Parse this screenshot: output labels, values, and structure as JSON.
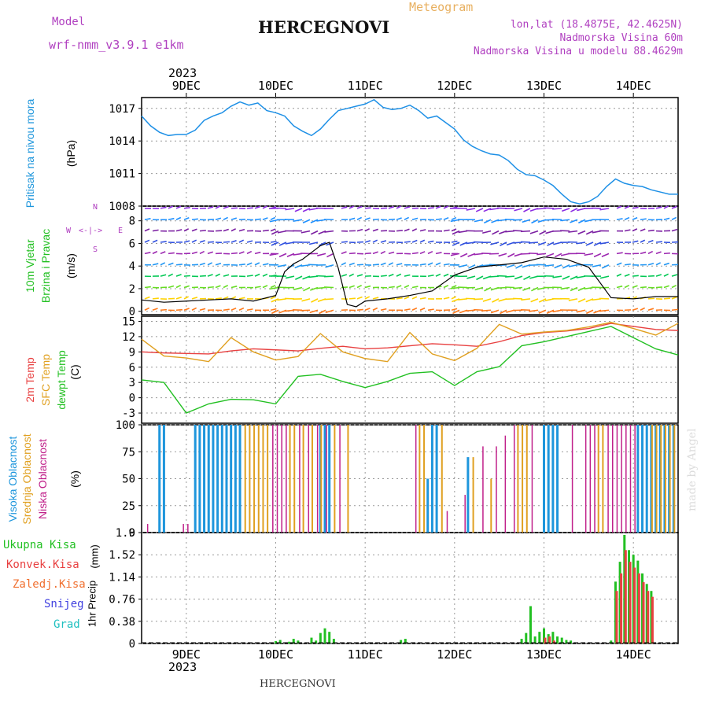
{
  "header": {
    "model_label": "Model",
    "model_name": "wrf-nmm_v3.9.1 e1km",
    "location_title": "HERCEGNOVI",
    "meteogram_label": "Meteogram",
    "lonlat": "lon,lat (18.4875E, 42.4625N)",
    "elevation": "Nadmorska Visina 60m",
    "model_elevation": "Nadmorska Visina u modelu 88.4629m",
    "footer_title": "HERCEGNOVI",
    "credit": "made by Angel"
  },
  "colors": {
    "pressure": "#1e90e6",
    "temp2m": "#e84040",
    "sfc": "#e0a020",
    "dewpt": "#22c022",
    "high_cloud": "#1e96dc",
    "mid_cloud": "#e0a020",
    "low_cloud": "#c0208a",
    "precip_total": "#22c022",
    "precip_conv": "#e84040",
    "title_purple": "#b040c0",
    "meteogram": "#e8b060"
  },
  "time_axis": {
    "year": "2023",
    "days": [
      "9DEC",
      "10DEC",
      "11DEC",
      "12DEC",
      "13DEC",
      "14DEC"
    ],
    "start_day_offset": -0.5,
    "end_day_offset": 5.5
  },
  "wind_compass": {
    "n": "N",
    "s": "S",
    "e": "E",
    "w": "W"
  },
  "panels": {
    "pressure": {
      "labels": [
        "Pritisak na nivou mora"
      ],
      "unit": "(hPa)"
    },
    "wind": {
      "labels": [
        "10m Vjetar",
        "Brzina i Pravac"
      ],
      "unit": "(m/s)"
    },
    "temp": {
      "labels": [
        "2m Temp",
        "SFC Temp",
        "dewpt Temp"
      ],
      "unit": "(C)"
    },
    "cloud": {
      "labels": [
        "Visoka Oblacnost",
        "Srednja Oblacnost",
        "Niska Oblacnost"
      ],
      "unit": "(%)"
    },
    "precip": {
      "legend": [
        "Ukupna Kisa",
        "Konvek.Kisa",
        "Zaledj.Kisa",
        "Snijeg",
        "Grad"
      ],
      "unit_labels": [
        "1hr Precip",
        "(mm)"
      ]
    }
  },
  "chart_data": [
    {
      "type": "line",
      "title": "",
      "ylabel": "(hPa)",
      "ylim": [
        1008,
        1018
      ],
      "yticks": [
        1008,
        1011,
        1014,
        1017
      ],
      "series": [
        {
          "name": "Pritisak na nivou mora",
          "x": [
            -0.5,
            -0.4,
            -0.3,
            -0.2,
            -0.1,
            0,
            0.1,
            0.2,
            0.3,
            0.4,
            0.5,
            0.6,
            0.7,
            0.8,
            0.9,
            1,
            1.1,
            1.2,
            1.3,
            1.4,
            1.5,
            1.6,
            1.7,
            1.8,
            1.9,
            2,
            2.1,
            2.2,
            2.3,
            2.4,
            2.5,
            2.6,
            2.7,
            2.8,
            2.9,
            3,
            3.1,
            3.2,
            3.3,
            3.4,
            3.5,
            3.6,
            3.7,
            3.8,
            3.9,
            4,
            4.1,
            4.2,
            4.3,
            4.4,
            4.5,
            4.6,
            4.7,
            4.8,
            4.9,
            5,
            5.1,
            5.2,
            5.3,
            5.4,
            5.5
          ],
          "values": [
            1016.3,
            1015.4,
            1014.8,
            1014.5,
            1014.6,
            1014.6,
            1015.0,
            1015.9,
            1016.3,
            1016.6,
            1017.2,
            1017.6,
            1017.3,
            1017.5,
            1016.8,
            1016.6,
            1016.3,
            1015.4,
            1014.9,
            1014.5,
            1015.1,
            1016.0,
            1016.8,
            1017.0,
            1017.2,
            1017.4,
            1017.8,
            1017.1,
            1016.9,
            1017.0,
            1017.3,
            1016.8,
            1016.1,
            1016.3,
            1015.7,
            1015.1,
            1014.1,
            1013.5,
            1013.1,
            1012.8,
            1012.7,
            1012.2,
            1011.4,
            1010.9,
            1010.8,
            1010.4,
            1009.9,
            1009.1,
            1008.4,
            1008.2,
            1008.4,
            1008.9,
            1009.8,
            1010.5,
            1010.1,
            1009.9,
            1009.8,
            1009.5,
            1009.3,
            1009.1,
            1009.1
          ]
        }
      ]
    },
    {
      "type": "line",
      "title": "",
      "ylabel": "(m/s)",
      "ylim": [
        -0.3,
        9.3
      ],
      "yticks": [
        0,
        2,
        4,
        6,
        8
      ],
      "series": [
        {
          "name": "10m Vjetar",
          "x": [
            -0.5,
            -0.25,
            0,
            0.25,
            0.5,
            0.75,
            1,
            1.1,
            1.2,
            1.3,
            1.4,
            1.5,
            1.6,
            1.7,
            1.8,
            1.9,
            2,
            2.25,
            2.5,
            2.75,
            3,
            3.25,
            3.5,
            3.75,
            4,
            4.25,
            4.5,
            4.75,
            5,
            5.25,
            5.5
          ],
          "values": [
            1.0,
            0.8,
            0.9,
            1.0,
            1.1,
            0.9,
            1.4,
            3.5,
            4.2,
            4.6,
            5.2,
            5.8,
            6.1,
            3.8,
            0.6,
            0.4,
            0.9,
            1.1,
            1.4,
            1.8,
            3.2,
            3.9,
            4.1,
            4.3,
            4.8,
            4.6,
            3.9,
            1.2,
            1.1,
            1.3,
            1.3
          ]
        }
      ]
    },
    {
      "type": "line",
      "title": "",
      "ylabel": "(C)",
      "ylim": [
        -5,
        16
      ],
      "yticks": [
        -3,
        0,
        3,
        6,
        9,
        12,
        15
      ],
      "series": [
        {
          "name": "2m Temp",
          "x": [
            -0.5,
            -0.25,
            0,
            0.25,
            0.5,
            0.75,
            1,
            1.25,
            1.5,
            1.75,
            2,
            2.25,
            2.5,
            2.75,
            3,
            3.25,
            3.5,
            3.75,
            4,
            4.25,
            4.5,
            4.75,
            5,
            5.25,
            5.5
          ],
          "values": [
            9.0,
            8.8,
            8.7,
            8.6,
            9.2,
            9.6,
            9.4,
            9.2,
            9.7,
            10.1,
            9.6,
            9.8,
            10.2,
            10.6,
            10.4,
            10.1,
            11.0,
            12.2,
            12.8,
            13.1,
            13.6,
            14.6,
            14.0,
            13.4,
            13.2
          ]
        },
        {
          "name": "SFC Temp",
          "x": [
            -0.5,
            -0.25,
            0,
            0.25,
            0.5,
            0.75,
            1,
            1.25,
            1.5,
            1.75,
            2,
            2.25,
            2.5,
            2.75,
            3,
            3.25,
            3.5,
            3.75,
            4,
            4.25,
            4.5,
            4.75,
            5,
            5.25,
            5.5
          ],
          "values": [
            11.5,
            8.2,
            7.8,
            7.1,
            11.8,
            9.0,
            7.4,
            8.1,
            12.6,
            9.0,
            7.7,
            7.1,
            12.8,
            8.6,
            7.3,
            9.7,
            14.4,
            12.5,
            12.9,
            13.2,
            13.9,
            14.8,
            13.6,
            12.3,
            14.6
          ]
        },
        {
          "name": "dewpt Temp",
          "x": [
            -0.5,
            -0.25,
            0,
            0.25,
            0.5,
            0.75,
            1,
            1.25,
            1.5,
            1.75,
            2,
            2.25,
            2.5,
            2.75,
            3,
            3.25,
            3.5,
            3.75,
            4,
            4.25,
            4.5,
            4.75,
            5,
            5.25,
            5.5
          ],
          "values": [
            3.5,
            3.0,
            -3.0,
            -1.2,
            -0.3,
            -0.4,
            -1.2,
            4.2,
            4.6,
            3.2,
            2.0,
            3.2,
            4.8,
            5.1,
            2.4,
            5.1,
            6.1,
            10.2,
            11.0,
            12.0,
            13.0,
            14.0,
            11.8,
            9.6,
            8.4
          ]
        }
      ]
    },
    {
      "type": "bar",
      "title": "",
      "ylabel": "(%)",
      "ylim": [
        0,
        100
      ],
      "yticks": [
        0,
        25,
        50,
        75,
        100
      ],
      "series": [
        {
          "name": "Visoka Oblacnost",
          "x": [
            -0.3,
            -0.25,
            0.1,
            0.15,
            0.2,
            0.25,
            0.3,
            0.35,
            0.4,
            0.45,
            0.5,
            0.55,
            0.6,
            1.5,
            1.55,
            1.6,
            2.7,
            2.75,
            2.8,
            3.15,
            4.0,
            4.05,
            4.1,
            4.15,
            5.05,
            5.1,
            5.15,
            5.2,
            5.25,
            5.3,
            5.35,
            5.4,
            5.45
          ],
          "values": [
            100,
            100,
            100,
            100,
            100,
            100,
            100,
            100,
            100,
            100,
            100,
            100,
            100,
            100,
            100,
            100,
            50,
            100,
            100,
            70,
            100,
            100,
            100,
            100,
            100,
            100,
            100,
            100,
            100,
            100,
            100,
            100,
            100
          ]
        },
        {
          "name": "Srednja Oblacnost",
          "x": [
            0.65,
            0.7,
            0.75,
            0.8,
            0.85,
            0.9,
            1.15,
            1.2,
            1.3,
            1.4,
            1.5,
            1.65,
            1.8,
            2.6,
            2.65,
            2.85,
            3.2,
            3.4,
            3.7,
            3.75,
            3.8,
            4.6,
            4.65,
            5.2,
            5.25,
            5.3,
            5.35,
            5.4,
            5.45
          ],
          "values": [
            100,
            100,
            100,
            100,
            100,
            100,
            100,
            100,
            100,
            100,
            100,
            100,
            100,
            100,
            100,
            100,
            70,
            50,
            100,
            100,
            100,
            100,
            100,
            100,
            100,
            100,
            100,
            100,
            100
          ]
        },
        {
          "name": "Niska Oblacnost",
          "x": [
            -0.45,
            -0.05,
            0.0,
            0.95,
            1.0,
            1.05,
            1.1,
            1.25,
            1.35,
            1.45,
            1.55,
            1.7,
            2.55,
            2.9,
            3.1,
            3.3,
            3.45,
            3.55,
            3.65,
            3.85,
            4.3,
            4.45,
            4.5,
            4.55,
            4.7,
            4.75,
            4.8,
            4.85,
            4.9,
            4.95,
            5.0
          ],
          "values": [
            8,
            8,
            8,
            100,
            100,
            100,
            100,
            100,
            100,
            100,
            100,
            100,
            100,
            20,
            35,
            80,
            80,
            90,
            100,
            100,
            100,
            100,
            100,
            100,
            100,
            100,
            100,
            100,
            100,
            100,
            100
          ]
        }
      ]
    },
    {
      "type": "bar",
      "title": "",
      "ylabel": "(mm)",
      "ylim": [
        0,
        1.9
      ],
      "yticks": [
        0,
        0.38,
        0.76,
        1.14,
        1.52,
        1.9
      ],
      "series": [
        {
          "name": "Ukupna Kisa",
          "x": [
            1.0,
            1.05,
            1.15,
            1.2,
            1.25,
            1.4,
            1.45,
            1.5,
            1.55,
            1.6,
            1.65,
            2.4,
            2.45,
            3.75,
            3.8,
            3.85,
            3.9,
            3.95,
            4.0,
            4.05,
            4.1,
            4.15,
            4.2,
            4.25,
            4.3,
            4.75,
            4.8,
            4.85,
            4.9,
            4.95,
            5.0,
            5.05,
            5.1,
            5.15,
            5.2
          ],
          "values": [
            0.04,
            0.06,
            0.03,
            0.08,
            0.05,
            0.1,
            0.05,
            0.18,
            0.26,
            0.2,
            0.08,
            0.06,
            0.08,
            0.08,
            0.18,
            0.64,
            0.12,
            0.2,
            0.26,
            0.16,
            0.2,
            0.12,
            0.1,
            0.06,
            0.05,
            0.05,
            1.06,
            1.4,
            1.86,
            1.6,
            1.52,
            1.42,
            1.2,
            1.02,
            0.9
          ]
        },
        {
          "name": "Konvek.Kisa",
          "x": [
            4.0,
            4.05,
            4.1,
            4.8,
            4.85,
            4.9,
            4.95,
            5.0,
            5.05,
            5.1,
            5.15,
            5.2
          ],
          "values": [
            0.1,
            0.12,
            0.05,
            0.9,
            1.2,
            1.6,
            1.4,
            1.3,
            1.2,
            1.05,
            0.9,
            0.8
          ]
        }
      ]
    }
  ]
}
